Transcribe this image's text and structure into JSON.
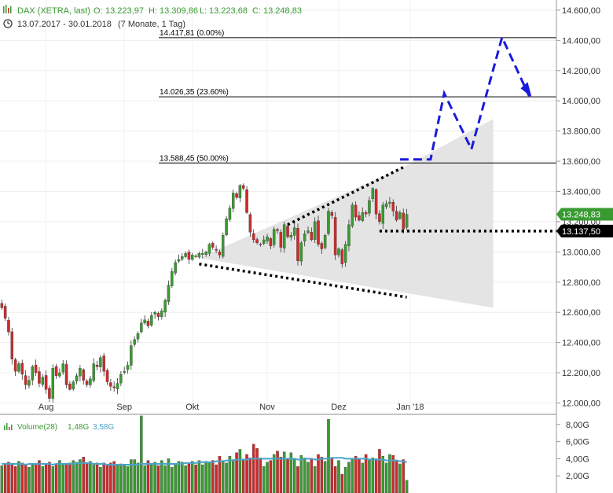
{
  "header": {
    "instrument": "DAX (XETRA, last)",
    "ohlc": [
      {
        "label": "O:",
        "value": "13.223,97"
      },
      {
        "label": "H:",
        "value": "13.309,86"
      },
      {
        "label": "L:",
        "value": "13.223,68"
      },
      {
        "label": "C:",
        "value": "13.248,83"
      }
    ],
    "range": "13.07.2017 - 30.01.2018",
    "period": "(7 Monate, 1 Tag)"
  },
  "volume_header": {
    "label": "Volume(28)",
    "value1": "1,48G",
    "value2": "3,58G"
  },
  "colors": {
    "up": "#3a9a32",
    "down": "#cc2b2b",
    "wick": "#333333",
    "sma": "#4aa3c8",
    "forecast": "#1a1adc",
    "triangle_fill": "#e4e4e4",
    "label_green": "#3a9a32",
    "label_black": "#000000"
  },
  "chart_data": {
    "type": "candlestick",
    "y_range": [
      11950,
      14660
    ],
    "y_ticks": [
      {
        "value": 12000,
        "label": "12.000,00"
      },
      {
        "value": 12200,
        "label": "12.200,00"
      },
      {
        "value": 12400,
        "label": "12.400,00"
      },
      {
        "value": 12600,
        "label": "12.600,00"
      },
      {
        "value": 12800,
        "label": "12.800,00"
      },
      {
        "value": 13000,
        "label": "13.000,00"
      },
      {
        "value": 13200,
        "label": "13.200,00"
      },
      {
        "value": 13400,
        "label": "13.400,00"
      },
      {
        "value": 13600,
        "label": "13.600,00"
      },
      {
        "value": 13800,
        "label": "13.800,00"
      },
      {
        "value": 14000,
        "label": "14.000,00"
      },
      {
        "value": 14200,
        "label": "14.200,00"
      },
      {
        "value": 14400,
        "label": "14.400,00"
      },
      {
        "value": 14600,
        "label": "14.600,00"
      }
    ],
    "x_labels": [
      {
        "label": "Aug",
        "index": 13
      },
      {
        "label": "Sep",
        "index": 36
      },
      {
        "label": "Okt",
        "index": 56
      },
      {
        "label": "Nov",
        "index": 78
      },
      {
        "label": "Dez",
        "index": 99
      },
      {
        "label": "Jan '18",
        "index": 120
      }
    ],
    "closes": [
      12630,
      12560,
      12470,
      12290,
      12210,
      12260,
      12190,
      12120,
      12150,
      12240,
      12200,
      12130,
      12170,
      12090,
      12030,
      12230,
      12180,
      12200,
      12260,
      12120,
      12090,
      12140,
      12180,
      12230,
      12150,
      12120,
      12160,
      12260,
      12240,
      12300,
      12210,
      12140,
      12110,
      12100,
      12130,
      12190,
      12210,
      12250,
      12380,
      12420,
      12460,
      12530,
      12550,
      12510,
      12580,
      12600,
      12570,
      12610,
      12680,
      12780,
      12870,
      12930,
      12950,
      12970,
      12990,
      12950,
      12980,
      12970,
      12990,
      12990,
      13000,
      13050,
      13030,
      13010,
      12980,
      13110,
      13220,
      13290,
      13390,
      13360,
      13440,
      13420,
      13260,
      13130,
      13080,
      13060,
      13050,
      13080,
      13100,
      13040,
      13150,
      13140,
      13030,
      13180,
      13100,
      13110,
      13160,
      12940,
      13060,
      13120,
      13140,
      13080,
      13200,
      13050,
      13020,
      13110,
      13270,
      13240,
      12980,
      13020,
      12920,
      13050,
      13180,
      13310,
      13230,
      13210,
      13260,
      13250,
      13340,
      13420,
      13250,
      13200,
      13310,
      13320,
      13330,
      13270,
      13210,
      13260,
      13150,
      13248.83
    ],
    "volume": {
      "axis_ticks": [
        {
          "value": 8,
          "label": "8,00G"
        },
        {
          "value": 6,
          "label": "6,00G"
        },
        {
          "value": 4,
          "label": "4,00G"
        },
        {
          "value": 2,
          "label": "2,00G"
        }
      ],
      "values": [
        3.2,
        3.4,
        3.6,
        3.4,
        3.1,
        3.7,
        3.5,
        3.3,
        3.0,
        3.3,
        3.4,
        3.8,
        3.1,
        3.3,
        3.6,
        3.1,
        3.4,
        3.8,
        3.3,
        3.4,
        3.5,
        3.8,
        3.6,
        3.9,
        4.2,
        3.5,
        3.7,
        3.3,
        3.5,
        3.0,
        3.5,
        3.2,
        3.5,
        3.7,
        3.2,
        3.4,
        3.2,
        3.1,
        3.9,
        3.9,
        3.5,
        9.0,
        3.2,
        3.8,
        3.3,
        3.6,
        3.2,
        3.8,
        3.2,
        4.0,
        3.0,
        3.3,
        3.7,
        3.6,
        3.2,
        3.4,
        3.7,
        3.3,
        3.8,
        3.3,
        3.7,
        3.6,
        3.8,
        3.3,
        4.3,
        3.8,
        3.5,
        4.3,
        3.9,
        4.7,
        5.1,
        3.8,
        4.5,
        4.1,
        5.7,
        5.2,
        4.1,
        3.1,
        3.6,
        3.8,
        4.5,
        4.9,
        4.2,
        4.8,
        4.0,
        4.7,
        3.9,
        3.1,
        4.4,
        4.1,
        3.6,
        3.9,
        3.1,
        4.5,
        4.2,
        3.7,
        8.6,
        4.0,
        3.1,
        3.8,
        2.2,
        3.0,
        3.6,
        3.9,
        4.3,
        4.0,
        3.5,
        4.5,
        3.8,
        4.1,
        4.0,
        5.1,
        4.3,
        3.5,
        4.5,
        4.4,
        3.8,
        3.4,
        3.9,
        1.48
      ],
      "sma": [
        3.4,
        3.4,
        3.4,
        3.4,
        3.4,
        3.4,
        3.4,
        3.3,
        3.4,
        3.4,
        3.4,
        3.4,
        3.4,
        3.4,
        3.4,
        3.3,
        3.4,
        3.4,
        3.4,
        3.4,
        3.4,
        3.4,
        3.5,
        3.5,
        3.5,
        3.5,
        3.5,
        3.4,
        3.4,
        3.4,
        3.4,
        3.3,
        3.3,
        3.3,
        3.3,
        3.3,
        3.3,
        3.3,
        3.3,
        3.3,
        3.3,
        3.4,
        3.4,
        3.4,
        3.4,
        3.4,
        3.4,
        3.4,
        3.4,
        3.4,
        3.4,
        3.4,
        3.4,
        3.4,
        3.5,
        3.5,
        3.5,
        3.5,
        3.6,
        3.6,
        3.6,
        3.6,
        3.6,
        3.7,
        3.7,
        3.7,
        3.8,
        3.8,
        3.8,
        3.9,
        3.9,
        3.9,
        3.9,
        4.0,
        4.0,
        4.0,
        4.0,
        4.0,
        4.0,
        4.0,
        4.0,
        4.0,
        4.0,
        4.0,
        4.0,
        4.0,
        4.0,
        3.9,
        3.9,
        4.0,
        4.0,
        4.0,
        3.9,
        3.9,
        4.0,
        4.0,
        4.0,
        4.1,
        4.1,
        4.1,
        4.1,
        4.0,
        4.0,
        4.0,
        4.0,
        4.0,
        4.0,
        4.0,
        3.9,
        3.9,
        3.9,
        3.9,
        3.9,
        3.8,
        3.8,
        3.8,
        3.8,
        3.7,
        3.7,
        3.58
      ]
    },
    "fibonacci": [
      {
        "value": 14417.81,
        "label": "14.417,81 (0.00%)"
      },
      {
        "value": 14026.35,
        "label": "14.026,35 (23.60%)"
      },
      {
        "value": 13588.45,
        "label": "13.588,45 (50.00%)"
      }
    ],
    "support": {
      "value": 13137.5,
      "label": "13.137,50"
    },
    "last": {
      "value": 13248.83,
      "label": "13.248,83"
    }
  }
}
